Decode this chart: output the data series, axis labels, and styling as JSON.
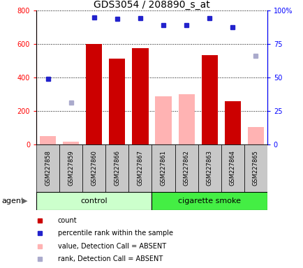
{
  "title": "GDS3054 / 208890_s_at",
  "samples": [
    "GSM227858",
    "GSM227859",
    "GSM227860",
    "GSM227866",
    "GSM227867",
    "GSM227861",
    "GSM227862",
    "GSM227863",
    "GSM227864",
    "GSM227865"
  ],
  "count_values": [
    null,
    null,
    600,
    515,
    575,
    null,
    null,
    535,
    260,
    null
  ],
  "count_absent_values": [
    50,
    20,
    null,
    null,
    null,
    290,
    300,
    null,
    null,
    105
  ],
  "rank_values": [
    395,
    null,
    760,
    750,
    755,
    715,
    715,
    755,
    700,
    null
  ],
  "rank_absent_values": [
    null,
    250,
    null,
    null,
    null,
    null,
    null,
    null,
    null,
    530
  ],
  "ylim_left": [
    0,
    800
  ],
  "ylim_right": [
    0,
    100
  ],
  "yticks_left": [
    0,
    200,
    400,
    600,
    800
  ],
  "yticks_right": [
    0,
    25,
    50,
    75,
    100
  ],
  "ytick_labels_right": [
    "0",
    "25",
    "50",
    "75",
    "100%"
  ],
  "bar_color_present": "#cc0000",
  "bar_color_absent": "#ffb3b3",
  "dot_color_present": "#2222cc",
  "dot_color_absent": "#aaaacc",
  "control_color_light": "#ccffcc",
  "control_color_dark": "#55dd55",
  "smoke_color": "#44ee44",
  "label_box_color": "#c8c8c8",
  "title_fontsize": 10,
  "tick_fontsize": 7,
  "label_fontsize": 6,
  "group_fontsize": 8,
  "legend_fontsize": 7
}
